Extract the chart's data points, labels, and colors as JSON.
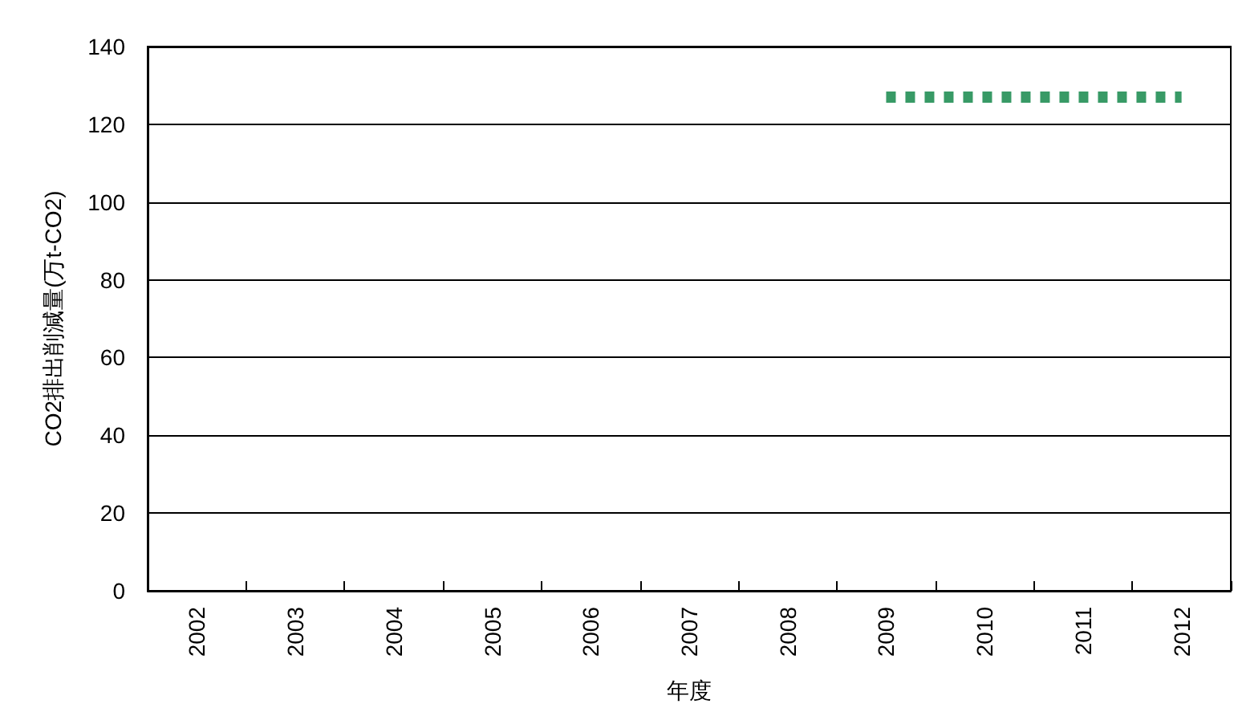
{
  "chart_data": {
    "type": "line",
    "xlabel": "年度",
    "ylabel": "CO2排出削減量(万t-CO2)",
    "categories": [
      "2002",
      "2003",
      "2004",
      "2005",
      "2006",
      "2007",
      "2008",
      "2009",
      "2010",
      "2011",
      "2012"
    ],
    "series": [
      {
        "color": "#389a66",
        "line_style": "dotted",
        "values": [
          null,
          null,
          null,
          null,
          null,
          null,
          null,
          127,
          127,
          127,
          127
        ]
      }
    ],
    "ylim": [
      0,
      140
    ],
    "yticks": [
      0,
      20,
      40,
      60,
      80,
      100,
      120,
      140
    ],
    "grid": "y",
    "marker": "none"
  }
}
